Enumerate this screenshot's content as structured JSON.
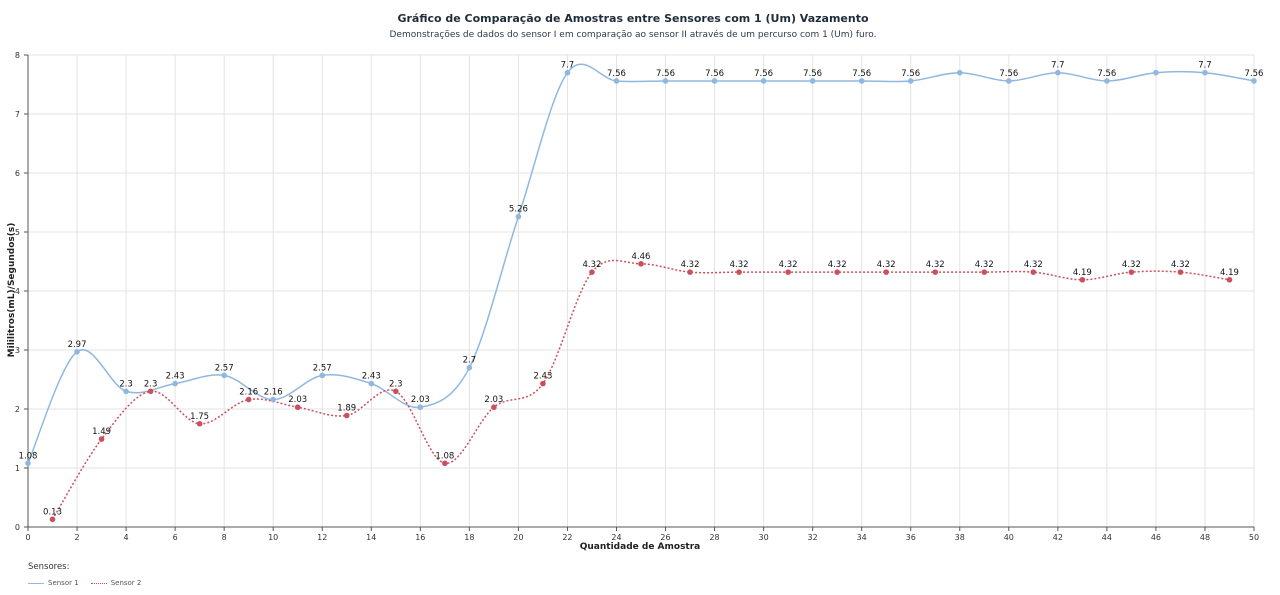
{
  "chart": {
    "title": "Gráfico de Comparação de Amostras entre Sensores com 1 (Um) Vazamento",
    "subtitle": "Demonstrações de dados do sensor I em comparação ao sensor II  através de um percurso com 1 (Um) furo."
  },
  "legend": {
    "title": "Sensores:",
    "items": [
      {
        "label": "Sensor 1",
        "color": "#8fb8e0",
        "style": "solid"
      },
      {
        "label": "Sensor 2",
        "color": "#cc4f5e",
        "style": "dotted"
      }
    ]
  },
  "chart_data": {
    "type": "line",
    "xlabel": "Quantidade de Amostra",
    "ylabel": "Mililitros(mL)/Segundos(s)",
    "xlim": [
      0,
      50
    ],
    "ylim": [
      0,
      8
    ],
    "xticks": [
      0,
      2,
      4,
      6,
      8,
      10,
      12,
      14,
      16,
      18,
      20,
      22,
      24,
      26,
      28,
      30,
      32,
      34,
      36,
      38,
      40,
      42,
      44,
      46,
      48,
      50
    ],
    "yticks": [
      0,
      1,
      2,
      3,
      4,
      5,
      6,
      7,
      8
    ],
    "grid": true,
    "legend_position": "bottom-left",
    "series": [
      {
        "name": "Sensor 1",
        "color": "#8fb8e0",
        "x": [
          0,
          2,
          4,
          6,
          8,
          10,
          12,
          14,
          16,
          18,
          20,
          22,
          24,
          26,
          28,
          30,
          32,
          34,
          36,
          38,
          40,
          42,
          44,
          46,
          48,
          50
        ],
        "y": [
          1.08,
          2.97,
          2.3,
          2.43,
          2.57,
          2.16,
          2.57,
          2.43,
          2.03,
          2.7,
          5.26,
          7.7,
          7.56,
          7.56,
          7.56,
          7.56,
          7.56,
          7.56,
          7.56,
          7.7,
          7.56,
          7.7,
          7.56,
          7.7,
          7.7,
          7.56
        ],
        "labels": [
          "1.08",
          "2.97",
          "2.3",
          "2.43",
          "2.57",
          "2.16",
          "2.57",
          "2.43",
          "2.03",
          "2.7",
          "5.26",
          "7.7",
          "7.56",
          "7.56",
          "7.56",
          "7.56",
          "7.56",
          "7.56",
          "7.56",
          "",
          "7.56",
          "7.7",
          "7.56",
          "",
          "7.7",
          "7.56"
        ]
      },
      {
        "name": "Sensor 2",
        "color": "#cc4f5e",
        "x": [
          1,
          3,
          5,
          7,
          9,
          11,
          13,
          15,
          17,
          19,
          21,
          23,
          25,
          27,
          29,
          31,
          33,
          35,
          37,
          39,
          41,
          43,
          45,
          47,
          49
        ],
        "y": [
          0.13,
          1.49,
          2.3,
          1.75,
          2.16,
          2.03,
          1.89,
          2.3,
          1.08,
          2.03,
          2.43,
          4.32,
          4.46,
          4.32,
          4.32,
          4.32,
          4.32,
          4.32,
          4.32,
          4.32,
          4.32,
          4.19,
          4.32,
          4.32,
          4.19
        ],
        "labels": [
          "0.13",
          "1.49",
          "2.3",
          "1.75",
          "2.16",
          "2.03",
          "1.89",
          "2.3",
          "1.08",
          "2.03",
          "2.43",
          "4.32",
          "4.46",
          "4.32",
          "4.32",
          "4.32",
          "4.32",
          "4.32",
          "4.32",
          "4.32",
          "4.32",
          "4.19",
          "4.32",
          "4.32",
          "4.19"
        ]
      }
    ]
  }
}
